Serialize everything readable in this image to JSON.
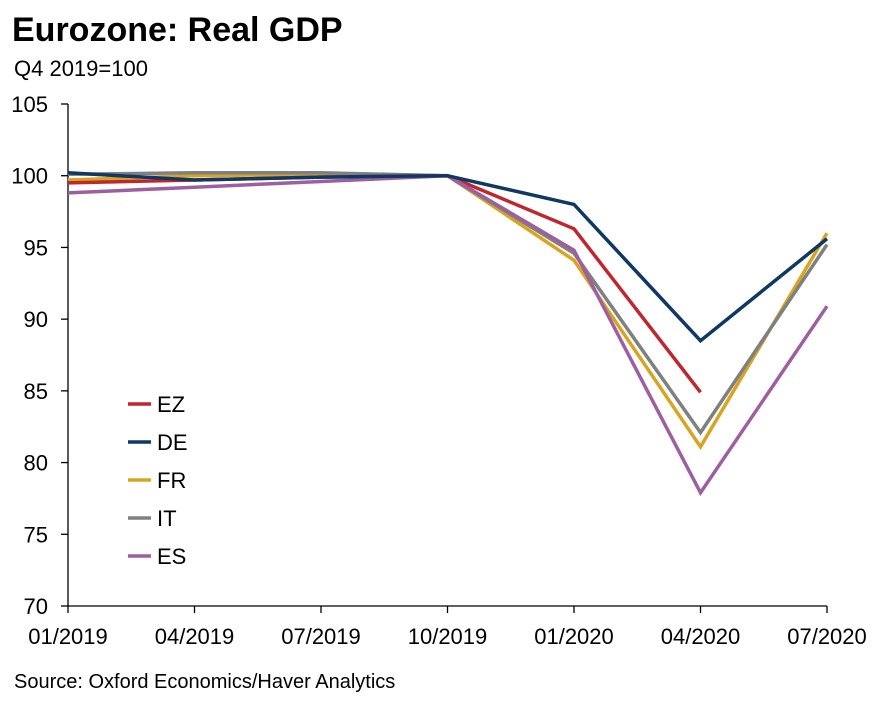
{
  "header": {
    "title": "Eurozone: Real GDP",
    "subtitle": "Q4 2019=100"
  },
  "footer": {
    "source": "Source: Oxford Economics/Haver Analytics"
  },
  "chart_data": {
    "type": "line",
    "title": "Eurozone: Real GDP",
    "subtitle": "Q4 2019=100",
    "xlabel": "",
    "ylabel": "",
    "categories": [
      "01/2019",
      "04/2019",
      "07/2019",
      "10/2019",
      "01/2020",
      "04/2020",
      "07/2020"
    ],
    "ylim": [
      70,
      105
    ],
    "yticks": [
      70,
      75,
      80,
      85,
      90,
      95,
      100,
      105
    ],
    "grid": false,
    "legend_position": "lower-left",
    "series": [
      {
        "name": "EZ",
        "color": "#C0262D",
        "values": [
          99.5,
          99.7,
          99.9,
          100,
          96.3,
          84.9,
          null
        ]
      },
      {
        "name": "DE",
        "color": "#0F3864",
        "values": [
          100.2,
          99.7,
          99.9,
          100,
          98.0,
          88.5,
          95.6
        ]
      },
      {
        "name": "FR",
        "color": "#D9A520",
        "values": [
          99.7,
          100.0,
          100.1,
          100,
          94.1,
          81.1,
          96.0
        ]
      },
      {
        "name": "IT",
        "color": "#808080",
        "values": [
          100.1,
          100.2,
          100.2,
          100,
          94.6,
          82.1,
          95.2
        ]
      },
      {
        "name": "ES",
        "color": "#9E5FA0",
        "values": [
          98.8,
          99.2,
          99.6,
          100,
          94.8,
          77.9,
          90.9
        ]
      }
    ]
  }
}
